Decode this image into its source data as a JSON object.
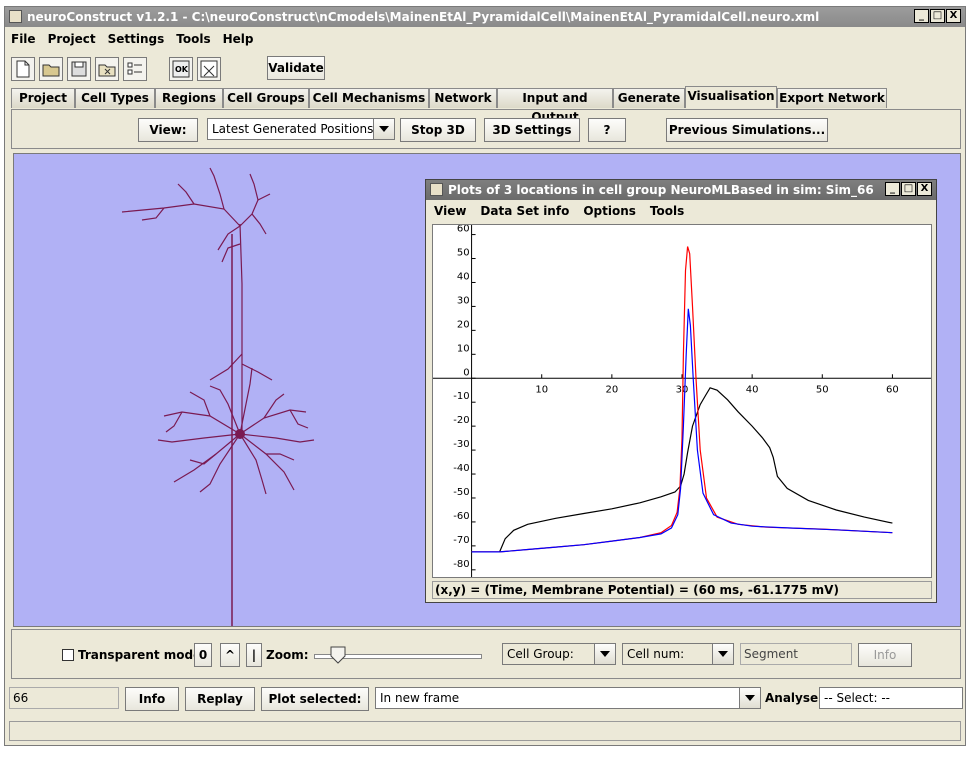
{
  "window": {
    "title": "neuroConstruct v1.2.1 - C:\\neuroConstruct\\nCmodels\\MainenEtAl_PyramidalCell\\MainenEtAl_PyramidalCell.neuro.xml",
    "min": "_",
    "max": "□",
    "close": "X"
  },
  "menubar": [
    "File",
    "Project",
    "Settings",
    "Tools",
    "Help"
  ],
  "toolbar": {
    "validate_label": "Validate"
  },
  "tabs": [
    "Project",
    "Cell Types",
    "Regions",
    "Cell Groups",
    "Cell Mechanisms",
    "Network",
    "Input and Output",
    "Generate",
    "Visualisation",
    "Export Network"
  ],
  "active_tab": "Visualisation",
  "viewbar": {
    "view_label": "View:",
    "view_value": "Latest Generated Positions",
    "stop3d_label": "Stop 3D",
    "settings3d_label": "3D Settings",
    "help_label": "?",
    "prevsims_label": "Previous Simulations..."
  },
  "plot_window": {
    "title": "Plots of 3 locations in cell group NeuroMLBased in sim: Sim_66",
    "menu": [
      "View",
      "Data Set info",
      "Options",
      "Tools"
    ],
    "status": "(x,y) = (Time, Membrane Potential) = (60 ms, -61.1775 mV)"
  },
  "chart_data": {
    "type": "line",
    "x_ticks": [
      10,
      20,
      30,
      40,
      50,
      60
    ],
    "y_ticks": [
      60,
      50,
      40,
      30,
      20,
      10,
      0,
      -10,
      -20,
      -30,
      -40,
      -50,
      -60,
      -70,
      -80
    ],
    "xlim": [
      -5.5,
      65.5
    ],
    "ylim": [
      -83,
      64
    ],
    "grid": false,
    "series": [
      {
        "color": "#000000",
        "points": [
          [
            4,
            -72.5
          ],
          [
            4.8,
            -67
          ],
          [
            6,
            -63.5
          ],
          [
            8,
            -61
          ],
          [
            12,
            -58.5
          ],
          [
            16,
            -56.5
          ],
          [
            20,
            -54.5
          ],
          [
            24,
            -52
          ],
          [
            27,
            -49.5
          ],
          [
            29,
            -47.5
          ],
          [
            29.8,
            -45
          ],
          [
            30.3,
            -40
          ],
          [
            30.8,
            -31
          ],
          [
            31.5,
            -20
          ],
          [
            32.6,
            -11
          ],
          [
            33.4,
            -7
          ],
          [
            34,
            -4
          ],
          [
            35,
            -5
          ],
          [
            36.5,
            -9
          ],
          [
            38,
            -14
          ],
          [
            40,
            -20
          ],
          [
            41.5,
            -25
          ],
          [
            42.5,
            -29
          ],
          [
            43,
            -33
          ],
          [
            43.6,
            -41
          ],
          [
            45,
            -46
          ],
          [
            48,
            -51
          ],
          [
            52,
            -55
          ],
          [
            56,
            -58
          ],
          [
            60,
            -60.5
          ]
        ]
      },
      {
        "color": "#ff0000",
        "points": [
          [
            0,
            -72.5
          ],
          [
            4,
            -72.5
          ],
          [
            8,
            -71.5
          ],
          [
            12,
            -70.5
          ],
          [
            16,
            -69.5
          ],
          [
            20,
            -68
          ],
          [
            24,
            -66.5
          ],
          [
            27,
            -64.5
          ],
          [
            28.5,
            -61.5
          ],
          [
            29.3,
            -56
          ],
          [
            29.7,
            -46
          ],
          [
            30,
            -25
          ],
          [
            30.2,
            10
          ],
          [
            30.5,
            45
          ],
          [
            30.8,
            55
          ],
          [
            31.1,
            52
          ],
          [
            31.5,
            30
          ],
          [
            32,
            0
          ],
          [
            32.6,
            -30
          ],
          [
            33.5,
            -50
          ],
          [
            35,
            -58
          ],
          [
            38,
            -61
          ],
          [
            42,
            -62.2
          ],
          [
            50,
            -63
          ],
          [
            60,
            -64.5
          ]
        ]
      },
      {
        "color": "#0000ff",
        "points": [
          [
            0,
            -72.5
          ],
          [
            4,
            -72.5
          ],
          [
            8,
            -71.5
          ],
          [
            12,
            -70.5
          ],
          [
            16,
            -69.5
          ],
          [
            20,
            -68
          ],
          [
            24,
            -66.5
          ],
          [
            27,
            -65
          ],
          [
            28.5,
            -62.5
          ],
          [
            29.4,
            -57
          ],
          [
            29.8,
            -46
          ],
          [
            30.2,
            -20
          ],
          [
            30.6,
            10
          ],
          [
            30.9,
            29
          ],
          [
            31.2,
            22
          ],
          [
            31.6,
            0
          ],
          [
            32.2,
            -30
          ],
          [
            33,
            -48
          ],
          [
            34.5,
            -57
          ],
          [
            37,
            -60.5
          ],
          [
            40,
            -61.8
          ],
          [
            45,
            -62.5
          ],
          [
            52,
            -63.3
          ],
          [
            60,
            -64.5
          ]
        ]
      }
    ]
  },
  "bottom_panel": {
    "transparent_label": "Transparent mode",
    "zero_label": "0",
    "up_label": "^",
    "bar_label": "|",
    "zoom_label": "Zoom:",
    "zoom_value": 0.1,
    "cellgroup_value": "Cell Group:",
    "cellnum_value": "Cell num:",
    "segment_placeholder": "Segment",
    "info_label": "Info"
  },
  "status_row": {
    "field_value": "66",
    "info_label": "Info",
    "replay_label": "Replay",
    "plot_selected_label": "Plot selected:",
    "frame_value": "In new frame",
    "analyse_label": "Analyse:",
    "select_value": "-- Select: --"
  }
}
